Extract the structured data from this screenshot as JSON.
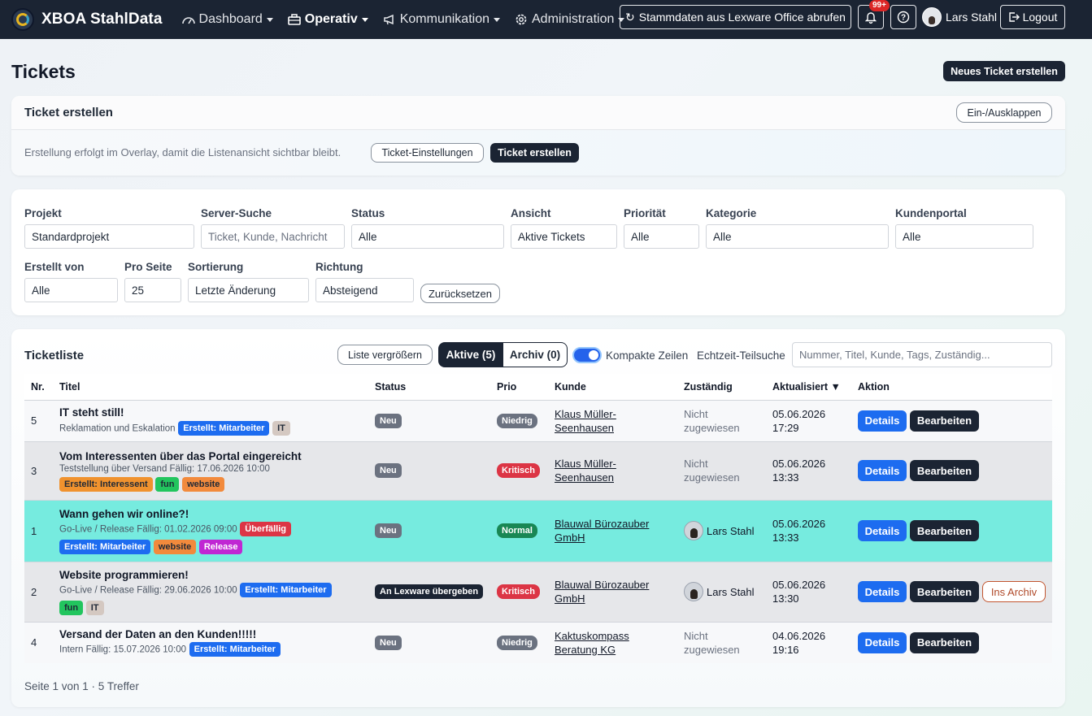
{
  "nav": {
    "brand": "XBOA StahlData",
    "items": [
      {
        "label": "Dashboard",
        "icon": "dashboard-icon"
      },
      {
        "label": "Operativ",
        "icon": "briefcase-icon"
      },
      {
        "label": "Kommunikation",
        "icon": "megaphone-icon"
      },
      {
        "label": "Administration",
        "icon": "gear-icon"
      }
    ],
    "sync_label": "Stammdaten aus Lexware Office abrufen",
    "notif_count": "99+",
    "user_name": "Lars Stahl",
    "logout_label": "Logout"
  },
  "page": {
    "title": "Tickets",
    "new_ticket_label": "Neues Ticket erstellen"
  },
  "create_card": {
    "title": "Ticket erstellen",
    "toggle_label": "Ein-/Ausklappen",
    "hint": "Erstellung erfolgt im Overlay, damit die Listenansicht sichtbar bleibt.",
    "settings_label": "Ticket-Einstellungen",
    "create_label": "Ticket erstellen"
  },
  "filters": {
    "projekt": {
      "label": "Projekt",
      "value": "Standardprojekt"
    },
    "server_suche": {
      "label": "Server-Suche",
      "placeholder": "Ticket, Kunde, Nachricht"
    },
    "status": {
      "label": "Status",
      "value": "Alle"
    },
    "ansicht": {
      "label": "Ansicht",
      "value": "Aktive Tickets"
    },
    "prioritaet": {
      "label": "Priorität",
      "value": "Alle"
    },
    "kategorie": {
      "label": "Kategorie",
      "value": "Alle"
    },
    "kundenportal": {
      "label": "Kundenportal",
      "value": "Alle"
    },
    "erstellt_von": {
      "label": "Erstellt von",
      "value": "Alle"
    },
    "pro_seite": {
      "label": "Pro Seite",
      "value": "25"
    },
    "sortierung": {
      "label": "Sortierung",
      "value": "Letzte Änderung"
    },
    "richtung": {
      "label": "Richtung",
      "value": "Absteigend"
    },
    "reset_label": "Zurücksetzen"
  },
  "list": {
    "title": "Ticketliste",
    "enlarge_label": "Liste vergrößern",
    "active_label": "Aktive (5)",
    "archive_label": "Archiv (0)",
    "compact_label": "Kompakte Zeilen",
    "compact_on": true,
    "realtime_label": "Echtzeit-Teilsuche",
    "search_placeholder": "Nummer, Titel, Kunde, Tags, Zuständig...",
    "columns": [
      "Nr.",
      "Titel",
      "Status",
      "Prio",
      "Kunde",
      "Zuständig",
      "Aktualisiert ▼",
      "Aktion"
    ],
    "footer": "Seite 1 von 1 · 5 Treffer",
    "action_details": "Details",
    "action_edit": "Bearbeiten",
    "action_archive": "Ins Archiv",
    "rows": [
      {
        "nr": "5",
        "title": "IT steht still!",
        "sub": "Reklamation und Eskalation",
        "badges1": [
          {
            "text": "Erstellt: Mitarbeiter",
            "color": "#1d6cf0"
          },
          {
            "text": "IT",
            "color": "#d4c8c1"
          }
        ],
        "badges2": [],
        "status": "Neu",
        "prio": "Niedrig",
        "kunde_1": "Klaus Müller-",
        "kunde_2": "Seenhausen",
        "zust_1": "Nicht",
        "zust_2": "zugewiesen",
        "date": "05.06.2026",
        "time": "17:29"
      },
      {
        "nr": "3",
        "title": "Vom Interessenten über das Portal eingereicht",
        "sub": "Teststellung über Versand  Fällig: 17.06.2026 10:00",
        "badges1": [],
        "badges2": [
          {
            "text": "Erstellt: Interessent",
            "color": "#f0922e"
          },
          {
            "text": "fun",
            "color": "#22c55e"
          },
          {
            "text": "website",
            "color": "#f28a3c"
          }
        ],
        "status": "Neu",
        "prio": "Kritisch",
        "kunde_1": "Klaus Müller-",
        "kunde_2": "Seenhausen",
        "zust_1": "Nicht",
        "zust_2": "zugewiesen",
        "date": "05.06.2026",
        "time": "13:33"
      },
      {
        "nr": "1",
        "title": "Wann gehen wir online?!",
        "sub": "Go-Live / Release  Fällig: 01.02.2026 09:00",
        "overdue": "Überfällig",
        "badges1": [],
        "badges2": [
          {
            "text": "Erstellt: Mitarbeiter",
            "color": "#1d6cf0"
          },
          {
            "text": "website",
            "color": "#f28a3c"
          },
          {
            "text": "Release",
            "color": "#c026d3"
          }
        ],
        "status": "Neu",
        "prio": "Normal",
        "kunde_1": "Blauwal Bürozauber",
        "kunde_2": "GmbH",
        "assignee": "Lars Stahl",
        "date": "05.06.2026",
        "time": "13:33"
      },
      {
        "nr": "2",
        "title": "Website programmieren!",
        "sub": "Go-Live / Release  Fällig: 29.06.2026 10:00",
        "badges1": [
          {
            "text": "Erstellt: Mitarbeiter",
            "color": "#1d6cf0"
          }
        ],
        "badges2": [
          {
            "text": "fun",
            "color": "#22c55e"
          },
          {
            "text": "IT",
            "color": "#d4c8c1"
          }
        ],
        "status": "An Lexware übergeben",
        "prio": "Kritisch",
        "kunde_1": "Blauwal Bürozauber",
        "kunde_2": "GmbH",
        "assignee": "Lars Stahl",
        "date": "05.06.2026",
        "time": "13:30"
      },
      {
        "nr": "4",
        "title": "Versand der Daten an den Kunden!!!!!",
        "sub": "Intern  Fällig: 15.07.2026 10:00",
        "badges1": [
          {
            "text": "Erstellt: Mitarbeiter",
            "color": "#1d6cf0"
          }
        ],
        "badges2": [],
        "status": "Neu",
        "prio": "Niedrig",
        "kunde_1": "Kaktuskompass",
        "kunde_2": "Beratung KG",
        "zust_1": "Nicht",
        "zust_2": "zugewiesen",
        "date": "04.06.2026",
        "time": "19:16"
      }
    ]
  }
}
